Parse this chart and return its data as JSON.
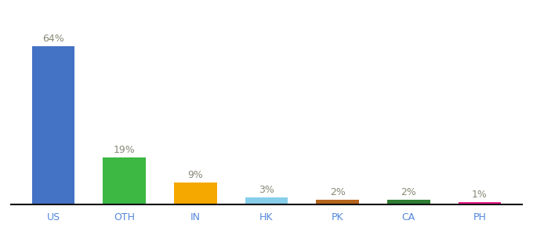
{
  "categories": [
    "US",
    "OTH",
    "IN",
    "HK",
    "PK",
    "CA",
    "PH"
  ],
  "values": [
    64,
    19,
    9,
    3,
    2,
    2,
    1
  ],
  "bar_colors": [
    "#4472c4",
    "#3cb843",
    "#f5a800",
    "#87ceeb",
    "#b5651d",
    "#2e7d32",
    "#e91e8c"
  ],
  "labels": [
    "64%",
    "19%",
    "9%",
    "3%",
    "2%",
    "2%",
    "1%"
  ],
  "background_color": "#ffffff",
  "label_color": "#888877",
  "label_fontsize": 9,
  "tick_fontsize": 9,
  "tick_color": "#5588dd",
  "ylim": [
    0,
    75
  ],
  "bar_width": 0.6
}
